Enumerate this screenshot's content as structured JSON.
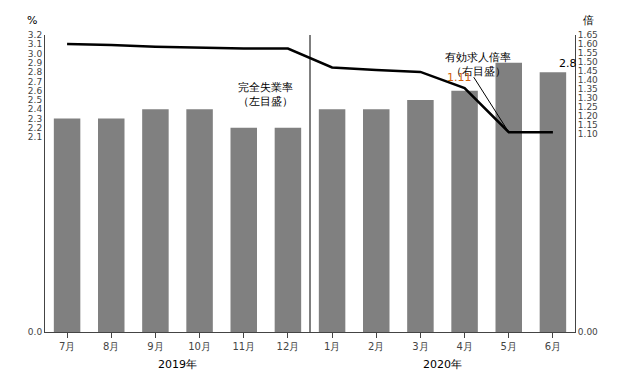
{
  "chart_data": {
    "type": "bar",
    "categories": [
      "7月",
      "8月",
      "9月",
      "10月",
      "11月",
      "12月",
      "1月",
      "2月",
      "3月",
      "4月",
      "5月",
      "6月"
    ],
    "series": [
      {
        "type": "bar",
        "color": "#808080",
        "values": [
          2.3,
          2.3,
          2.4,
          2.4,
          2.2,
          2.2,
          2.4,
          2.4,
          2.5,
          2.6,
          2.9,
          2.8
        ]
      },
      {
        "type": "line",
        "color": "#000000",
        "axis": "y2",
        "values": [
          1.6,
          1.595,
          1.585,
          1.58,
          1.575,
          1.575,
          1.47,
          1.455,
          1.445,
          1.355,
          1.11,
          1.11
        ]
      }
    ],
    "ylim": [
      0.0,
      3.2
    ],
    "yticks": [
      {
        "value": 0.0,
        "label": "0.0"
      },
      2.1,
      2.2,
      2.3,
      2.4,
      2.5,
      2.6,
      2.7,
      2.8,
      2.9,
      {
        "value": 3.0,
        "label": "3.0"
      },
      3.1,
      3.2
    ],
    "y2lim": [
      0.0,
      1.65
    ],
    "y2ticks": [
      {
        "value": 0.0,
        "label": "0.00"
      },
      {
        "value": 1.1,
        "label": "1.10"
      },
      1.15,
      {
        "value": 1.2,
        "label": "1.20"
      },
      1.25,
      {
        "value": 1.3,
        "label": "1.30"
      },
      1.35,
      {
        "value": 1.4,
        "label": "1.40"
      },
      1.45,
      {
        "value": 1.5,
        "label": "1.50"
      },
      1.55,
      {
        "value": 1.6,
        "label": "1.60"
      },
      1.65
    ],
    "ylabel": "%",
    "y2label": "倍",
    "grid": false,
    "annotations": [
      {
        "text": "完全失業率\n（左目盛）"
      },
      {
        "text": "有効求人倍率\n（右目盛）"
      },
      {
        "text": "1.11",
        "category": "5月",
        "axis": "y2",
        "color": "#d4620a"
      },
      {
        "text": "2.8",
        "category": "6月"
      },
      {
        "text": "2019年",
        "categories": [
          "7月",
          "12月"
        ]
      },
      {
        "text": "2020年",
        "categories": [
          "1月",
          "6月"
        ]
      }
    ]
  }
}
